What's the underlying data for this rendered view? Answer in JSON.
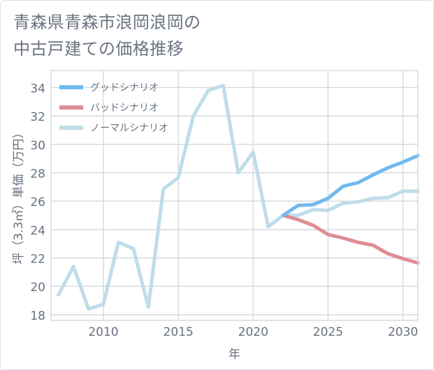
{
  "title": {
    "line1": "青森県青森市浪岡浪岡の",
    "line2": "中古戸建ての価格推移"
  },
  "colors": {
    "good": "#72b9ee",
    "bad": "#de8c95",
    "normal": "#bfdde9",
    "grid": "#d5dbe0",
    "axis_text": "#67717d"
  },
  "chart_data": {
    "type": "line",
    "title": "青森県青森市浪岡浪岡の中古戸建ての価格推移",
    "xlabel": "年",
    "ylabel": "坪（3.3㎡）単価（万円）",
    "xlim": [
      2006.5,
      2031
    ],
    "ylim": [
      17.6,
      35.2
    ],
    "x_ticks": [
      2010,
      2015,
      2020,
      2025,
      2030
    ],
    "y_ticks": [
      18,
      20,
      22,
      24,
      26,
      28,
      30,
      32,
      34
    ],
    "legend_position": "top-left",
    "series": [
      {
        "name": "グッドシナリオ",
        "color": "#72b9ee",
        "x": [
          2022,
          2023,
          2024,
          2025,
          2026,
          2027,
          2028,
          2029,
          2030,
          2031
        ],
        "values": [
          25.0,
          25.7,
          25.75,
          26.2,
          27.05,
          27.3,
          27.85,
          28.35,
          28.75,
          29.2
        ]
      },
      {
        "name": "バッドシナリオ",
        "color": "#de8c95",
        "x": [
          2022,
          2023,
          2024,
          2025,
          2026,
          2027,
          2028,
          2029,
          2030,
          2031
        ],
        "values": [
          25.0,
          24.7,
          24.3,
          23.65,
          23.4,
          23.1,
          22.9,
          22.3,
          21.95,
          21.65
        ]
      },
      {
        "name": "ノーマルシナリオ",
        "color": "#bfdde9",
        "x": [
          2007,
          2008,
          2009,
          2010,
          2011,
          2012,
          2013,
          2014,
          2015,
          2016,
          2017,
          2018,
          2019,
          2020,
          2021,
          2022,
          2023,
          2024,
          2025,
          2026,
          2027,
          2028,
          2029,
          2030,
          2031
        ],
        "values": [
          19.4,
          21.4,
          18.4,
          18.75,
          23.1,
          22.65,
          18.55,
          26.85,
          27.65,
          32.0,
          33.8,
          34.15,
          28.0,
          29.45,
          24.2,
          25.0,
          25.0,
          25.4,
          25.35,
          25.85,
          25.95,
          26.2,
          26.25,
          26.7,
          26.7
        ]
      }
    ]
  }
}
